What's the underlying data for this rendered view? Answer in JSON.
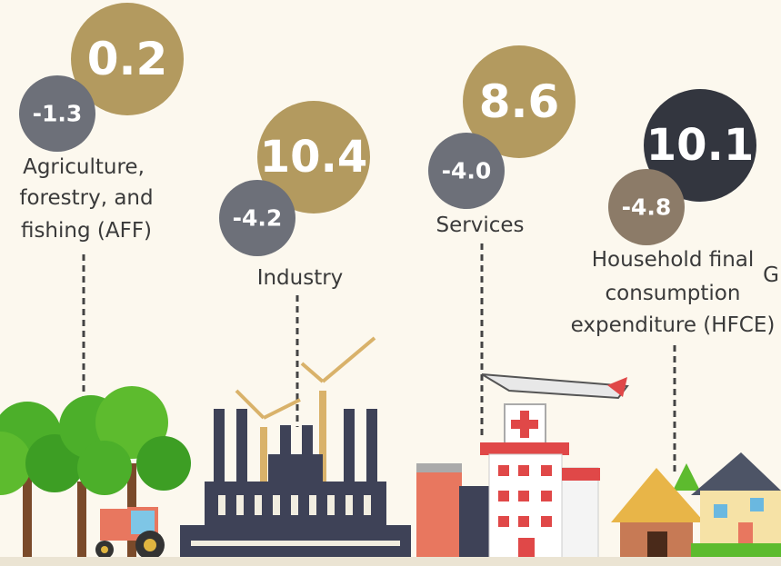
{
  "sectors": [
    {
      "label_lines": [
        "Agriculture,",
        "forestry, and",
        "fishing (AFF)"
      ],
      "previous": "-1.3",
      "current": "0.2"
    },
    {
      "label_lines": [
        "Industry"
      ],
      "previous": "-4.2",
      "current": "10.4"
    },
    {
      "label_lines": [
        "Services"
      ],
      "previous": "-4.0",
      "current": "8.6"
    },
    {
      "label_lines": [
        "Household final",
        "consumption",
        "expenditure (HFCE)"
      ],
      "previous": "-4.8",
      "current": "10.1"
    }
  ],
  "partial_label": "G"
}
